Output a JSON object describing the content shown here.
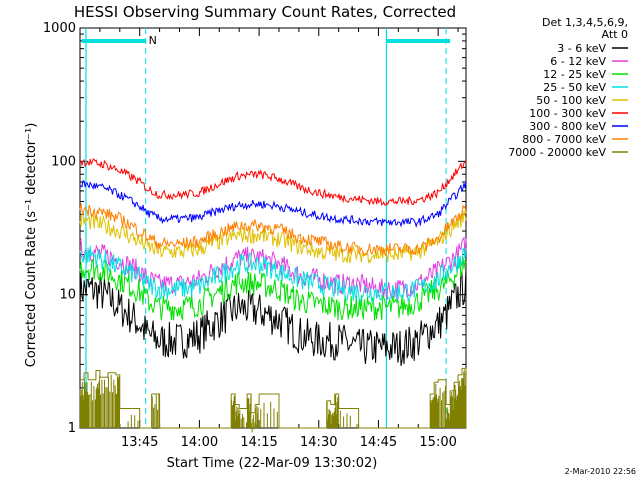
{
  "chart_data": {
    "type": "line",
    "title": "HESSI Observing Summary Count Rates, Corrected",
    "xlabel": "Start Time (22-Mar-09 13:30:02)",
    "ylabel": "Corrected Count Rate (s⁻¹ detector⁻¹)",
    "yscale": "log",
    "xlim": [
      "13:30",
      "15:07"
    ],
    "ylim": [
      1,
      1000
    ],
    "x_ticks": [
      "13:45",
      "14:00",
      "14:15",
      "14:30",
      "14:45",
      "15:00"
    ],
    "y_ticks": [
      "1",
      "10",
      "100",
      "1000"
    ],
    "legend_header": [
      "Det 1,3,4,5,6,9,",
      "Att 0"
    ],
    "legend_placement": "right, outside",
    "timestamp": "2-Mar-2010 22:56",
    "flag_marker": "N",
    "x_unit": "minutes since 13:30",
    "series": [
      {
        "name": "3 - 6 keV",
        "color": "#000000",
        "x": [
          0,
          3,
          6,
          10,
          15,
          17,
          20,
          25,
          30,
          35,
          40,
          45,
          50,
          55,
          60,
          65,
          70,
          75,
          80,
          85,
          90,
          92,
          95,
          97
        ],
        "values": [
          11,
          11,
          10,
          8,
          6,
          5,
          4.5,
          4.5,
          5,
          6.5,
          8,
          7.5,
          6.5,
          5,
          4.5,
          4.5,
          4,
          4,
          4,
          4.5,
          6,
          7,
          10,
          12
        ]
      },
      {
        "name": "6 - 12 keV",
        "color": "#e040e0",
        "x": [
          0,
          3,
          6,
          10,
          15,
          17,
          20,
          25,
          30,
          35,
          40,
          45,
          50,
          55,
          60,
          65,
          70,
          75,
          80,
          85,
          90,
          92,
          95,
          97
        ],
        "values": [
          22,
          21,
          20,
          18,
          15,
          13,
          12,
          12,
          13,
          16,
          19,
          19,
          17,
          14,
          13,
          12,
          12,
          11,
          11,
          12,
          15,
          17,
          20,
          24
        ]
      },
      {
        "name": "12 - 25 keV",
        "color": "#00e000",
        "x": [
          0,
          3,
          6,
          10,
          15,
          17,
          20,
          25,
          30,
          35,
          40,
          45,
          50,
          55,
          60,
          65,
          70,
          75,
          80,
          85,
          90,
          92,
          95,
          97
        ],
        "values": [
          16,
          16,
          15,
          13,
          10.5,
          9,
          8,
          8,
          8.5,
          10.5,
          12.5,
          12,
          11,
          9,
          8.5,
          8,
          8,
          8,
          8,
          9,
          11,
          12,
          15,
          18
        ]
      },
      {
        "name": "25 - 50 keV",
        "color": "#00e0e0",
        "x": [
          0,
          3,
          6,
          10,
          15,
          17,
          20,
          25,
          30,
          35,
          40,
          45,
          50,
          55,
          60,
          65,
          70,
          75,
          80,
          85,
          90,
          92,
          95,
          97
        ],
        "values": [
          20,
          20,
          18,
          16,
          13.5,
          12,
          11,
          11,
          11.5,
          14,
          17,
          17,
          15,
          13,
          12,
          11,
          10.5,
          10.5,
          10.5,
          11,
          13,
          15,
          18,
          21
        ]
      },
      {
        "name": "50 - 100 keV",
        "color": "#e0c000",
        "x": [
          0,
          3,
          6,
          10,
          15,
          17,
          20,
          25,
          30,
          35,
          40,
          45,
          50,
          55,
          60,
          65,
          70,
          75,
          80,
          85,
          90,
          92,
          95,
          97
        ],
        "values": [
          36,
          35,
          33,
          30,
          25,
          23,
          21,
          21,
          22,
          25,
          28,
          28,
          26,
          23,
          21,
          20,
          20,
          20,
          20,
          21,
          25,
          29,
          35,
          40
        ]
      },
      {
        "name": "100 - 300 keV",
        "color": "#ff0000",
        "x": [
          0,
          3,
          6,
          10,
          15,
          17,
          20,
          25,
          30,
          35,
          40,
          45,
          50,
          55,
          60,
          65,
          70,
          75,
          80,
          85,
          90,
          92,
          95,
          97
        ],
        "values": [
          100,
          98,
          95,
          85,
          70,
          62,
          56,
          56,
          58,
          68,
          78,
          80,
          74,
          64,
          58,
          54,
          52,
          50,
          50,
          51,
          58,
          68,
          85,
          100
        ]
      },
      {
        "name": "300 - 800 keV",
        "color": "#0000ff",
        "x": [
          0,
          3,
          6,
          10,
          15,
          17,
          20,
          25,
          30,
          35,
          40,
          45,
          50,
          55,
          60,
          65,
          70,
          75,
          80,
          85,
          90,
          92,
          95,
          97
        ],
        "values": [
          68,
          66,
          63,
          56,
          46,
          41,
          37,
          37,
          38,
          43,
          47,
          48,
          46,
          42,
          39,
          37,
          36,
          35,
          35,
          35,
          40,
          47,
          58,
          68
        ]
      },
      {
        "name": "800 - 7000 keV",
        "color": "#ff8000",
        "x": [
          0,
          3,
          6,
          10,
          15,
          17,
          20,
          25,
          30,
          35,
          40,
          45,
          50,
          55,
          60,
          65,
          70,
          75,
          80,
          85,
          90,
          92,
          95,
          97
        ],
        "values": [
          44,
          43,
          41,
          37,
          30,
          27,
          24,
          24,
          25,
          29,
          33,
          33,
          31,
          27,
          25,
          23,
          22,
          22,
          22,
          22,
          26,
          31,
          38,
          44
        ]
      },
      {
        "name": "7000 - 20000 keV",
        "color": "#808000",
        "x": [
          0,
          1,
          2,
          4,
          5,
          7,
          9,
          10,
          15,
          17,
          18,
          20,
          35,
          38,
          39,
          40,
          42,
          43,
          44,
          45,
          50,
          55,
          60,
          62,
          63,
          64,
          65,
          70,
          75,
          80,
          85,
          88,
          89,
          90,
          92,
          93,
          94,
          95,
          96,
          97
        ],
        "values": [
          2.3,
          2.6,
          2.3,
          2.7,
          2.4,
          2.6,
          2.5,
          1.4,
          1,
          1,
          1.8,
          1,
          1,
          1.8,
          1.5,
          1.4,
          1.8,
          1.3,
          1.5,
          1.8,
          1,
          1,
          1,
          1.6,
          1.5,
          1.8,
          1.4,
          1,
          1,
          1,
          1,
          1.8,
          2.2,
          2.3,
          1.5,
          1.9,
          2.2,
          2.5,
          2.8,
          2.6
        ]
      }
    ]
  }
}
